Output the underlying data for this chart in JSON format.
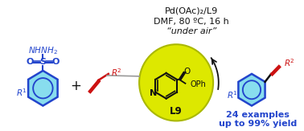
{
  "bg_color": "#ffffff",
  "reaction_conditions": [
    "Pd(OAc)₂/L9",
    "DMF, 80 ºC, 16 h",
    "“under air”"
  ],
  "result_text": [
    "24 examples",
    "up to 99% yield"
  ],
  "ligand_label": "L9",
  "circle_color": "#dde800",
  "circle_edge_color": "#aab800",
  "blue_ring_color": "#2244cc",
  "cyan_fill": "#88ddee",
  "red_color": "#cc1111",
  "blue_color": "#2244cc",
  "black_color": "#111111",
  "bold_blue": "#2244cc",
  "gray_color": "#666666"
}
